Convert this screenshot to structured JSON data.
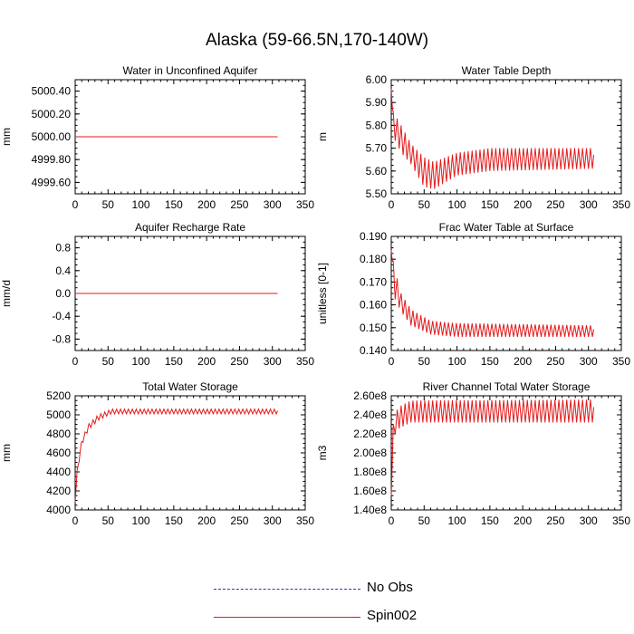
{
  "title": "Alaska (59-66.5N,170-140W)",
  "legend": [
    {
      "label": "No Obs",
      "color": "#3333cc",
      "style": "dashed"
    },
    {
      "label": "Spin002",
      "color": "#e31a1c",
      "style": "solid"
    }
  ],
  "colors": {
    "axis": "#000000",
    "spin002": "#e31a1c",
    "noobs": "#3333cc"
  },
  "chart_data": [
    {
      "id": "p1",
      "type": "line",
      "title": "Water in Unconfined Aquifer",
      "ylabel": "mm",
      "xlim": [
        0,
        350
      ],
      "xticks": [
        0,
        50,
        100,
        150,
        200,
        250,
        300,
        350
      ],
      "ylim": [
        4999.5,
        5000.5
      ],
      "yticks": [
        4999.6,
        4999.8,
        5000.0,
        5000.2,
        5000.4
      ],
      "ytick_labels": [
        "4999.60",
        "4999.80",
        "5000.00",
        "5000.20",
        "5000.40"
      ],
      "series": [
        {
          "name": "Spin002",
          "kind": "flat",
          "x": [
            0,
            308
          ],
          "y": [
            5000.0,
            5000.0
          ]
        }
      ]
    },
    {
      "id": "p2",
      "type": "line",
      "title": "Water Table Depth",
      "ylabel": "m",
      "xlim": [
        0,
        350
      ],
      "xticks": [
        0,
        50,
        100,
        150,
        200,
        250,
        300,
        350
      ],
      "ylim": [
        5.5,
        6.0
      ],
      "yticks": [
        5.5,
        5.6,
        5.7,
        5.8,
        5.9,
        6.0
      ],
      "ytick_labels": [
        "5.50",
        "5.60",
        "5.70",
        "5.80",
        "5.90",
        "6.00"
      ],
      "series": [
        {
          "name": "Spin002",
          "kind": "seasonal",
          "x_end": 308,
          "period": 6,
          "anchors": [
            [
              0,
              5.96,
              5.96
            ],
            [
              3,
              5.75,
              5.86
            ],
            [
              15,
              5.68,
              5.8
            ],
            [
              30,
              5.63,
              5.72
            ],
            [
              50,
              5.53,
              5.66
            ],
            [
              65,
              5.52,
              5.64
            ],
            [
              100,
              5.58,
              5.68
            ],
            [
              150,
              5.6,
              5.7
            ],
            [
              308,
              5.61,
              5.7
            ]
          ]
        }
      ]
    },
    {
      "id": "p3",
      "type": "line",
      "title": "Aquifer Recharge Rate",
      "ylabel": "mm/d",
      "xlim": [
        0,
        350
      ],
      "xticks": [
        0,
        50,
        100,
        150,
        200,
        250,
        300,
        350
      ],
      "ylim": [
        -1.0,
        1.0
      ],
      "yticks": [
        -0.8,
        -0.4,
        0.0,
        0.4,
        0.8
      ],
      "ytick_labels": [
        "-0.8",
        "-0.4",
        "0.0",
        "0.4",
        "0.8"
      ],
      "series": [
        {
          "name": "Spin002",
          "kind": "flat",
          "x": [
            0,
            308
          ],
          "y": [
            0.0,
            0.0
          ]
        }
      ]
    },
    {
      "id": "p4",
      "type": "line",
      "title": "Frac Water Table at Surface",
      "ylabel": "unitless [0-1]",
      "xlim": [
        0,
        350
      ],
      "xticks": [
        0,
        50,
        100,
        150,
        200,
        250,
        300,
        350
      ],
      "ylim": [
        0.14,
        0.19
      ],
      "yticks": [
        0.14,
        0.15,
        0.16,
        0.17,
        0.18,
        0.19
      ],
      "ytick_labels": [
        "0.140",
        "0.150",
        "0.160",
        "0.170",
        "0.180",
        "0.190"
      ],
      "series": [
        {
          "name": "Spin002",
          "kind": "seasonal",
          "x_end": 308,
          "period": 6,
          "anchors": [
            [
              0,
              0.184,
              0.184
            ],
            [
              5,
              0.163,
              0.176
            ],
            [
              15,
              0.157,
              0.165
            ],
            [
              30,
              0.151,
              0.158
            ],
            [
              60,
              0.147,
              0.153
            ],
            [
              100,
              0.146,
              0.152
            ],
            [
              308,
              0.146,
              0.151
            ]
          ]
        }
      ]
    },
    {
      "id": "p5",
      "type": "line",
      "title": "Total Water Storage",
      "ylabel": "mm",
      "xlim": [
        0,
        350
      ],
      "xticks": [
        0,
        50,
        100,
        150,
        200,
        250,
        300,
        350
      ],
      "ylim": [
        4000,
        5200
      ],
      "yticks": [
        4000,
        4200,
        4400,
        4600,
        4800,
        5000,
        5200
      ],
      "ytick_labels": [
        "4000",
        "4200",
        "4400",
        "4600",
        "4800",
        "5000",
        "5200"
      ],
      "series": [
        {
          "name": "Spin002",
          "kind": "seasonal",
          "x_end": 308,
          "period": 6,
          "anchors": [
            [
              0,
              4080,
              4080
            ],
            [
              3,
              4380,
              4420
            ],
            [
              10,
              4680,
              4740
            ],
            [
              20,
              4840,
              4900
            ],
            [
              35,
              4940,
              5000
            ],
            [
              55,
              5010,
              5060
            ],
            [
              80,
              5010,
              5060
            ],
            [
              308,
              5010,
              5060
            ]
          ]
        }
      ]
    },
    {
      "id": "p6",
      "type": "line",
      "title": "River Channel Total Water Storage",
      "ylabel": "m3",
      "xlim": [
        0,
        350
      ],
      "xticks": [
        0,
        50,
        100,
        150,
        200,
        250,
        300,
        350
      ],
      "ylim": [
        140000000,
        260000000
      ],
      "yticks": [
        140000000,
        160000000,
        180000000,
        200000000,
        220000000,
        240000000,
        260000000
      ],
      "ytick_labels": [
        "1.40e8",
        "1.60e8",
        "1.80e8",
        "2.00e8",
        "2.20e8",
        "2.40e8",
        "2.60e8"
      ],
      "series": [
        {
          "name": "Spin002",
          "kind": "seasonal",
          "x_end": 308,
          "period": 6,
          "anchors": [
            [
              0,
              155000000,
              155000000
            ],
            [
              3,
              215000000,
              230000000
            ],
            [
              10,
              225000000,
              248000000
            ],
            [
              30,
              232000000,
              255000000
            ],
            [
              308,
              232000000,
              256000000
            ]
          ]
        }
      ]
    }
  ]
}
